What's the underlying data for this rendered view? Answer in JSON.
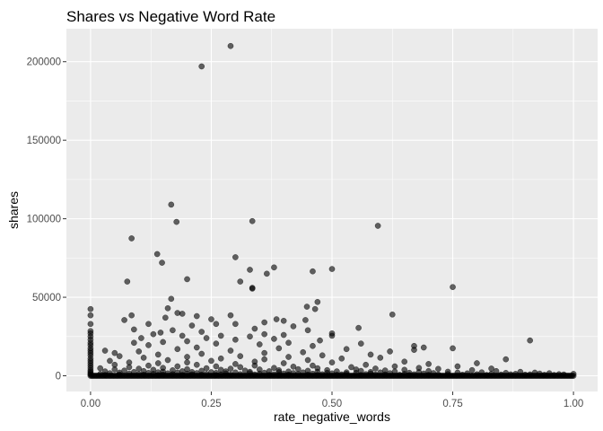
{
  "chart_data": {
    "type": "scatter",
    "title": "Shares vs Negative Word Rate",
    "xlabel": "rate_negative_words",
    "ylabel": "shares",
    "xlim": [
      -0.05,
      1.05
    ],
    "ylim": [
      -10000,
      221000
    ],
    "x_ticks": [
      0.0,
      0.25,
      0.5,
      0.75,
      1.0
    ],
    "x_tick_labels": [
      "0.00",
      "0.25",
      "0.50",
      "0.75",
      "1.00"
    ],
    "y_ticks": [
      0,
      50000,
      100000,
      150000,
      200000
    ],
    "y_tick_labels": [
      "0",
      "50000",
      "100000",
      "150000",
      "200000"
    ],
    "grid": true,
    "colors": {
      "panel": "#ebebeb",
      "grid": "#ffffff",
      "point": "#000000",
      "tick": "#333333"
    },
    "points": [
      [
        0.29,
        210000
      ],
      [
        0.23,
        197000
      ],
      [
        0.167,
        109000
      ],
      [
        0.178,
        98000
      ],
      [
        0.335,
        98500
      ],
      [
        0.595,
        95500
      ],
      [
        0.085,
        87500
      ],
      [
        0.138,
        77500
      ],
      [
        0.3,
        75500
      ],
      [
        0.148,
        72000
      ],
      [
        0.33,
        67500
      ],
      [
        0.365,
        65000
      ],
      [
        0.5,
        68000
      ],
      [
        0.46,
        66500
      ],
      [
        0.38,
        69000
      ],
      [
        0.2,
        61500
      ],
      [
        0.076,
        60000
      ],
      [
        0.335,
        56000
      ],
      [
        0.335,
        55500
      ],
      [
        0.31,
        60000
      ],
      [
        0.167,
        49000
      ],
      [
        0.16,
        43000
      ],
      [
        0.75,
        56500
      ],
      [
        0.0,
        42500
      ],
      [
        0.0,
        38500
      ],
      [
        0.0,
        33000
      ],
      [
        0.0,
        28500
      ],
      [
        0.0,
        27000
      ],
      [
        0.0,
        25000
      ],
      [
        0.0,
        23000
      ],
      [
        0.0,
        21000
      ],
      [
        0.0,
        19500
      ],
      [
        0.0,
        17500
      ],
      [
        0.0,
        16000
      ],
      [
        0.0,
        14500
      ],
      [
        0.0,
        13000
      ],
      [
        0.0,
        11000
      ],
      [
        0.0,
        9500
      ],
      [
        0.0,
        8000
      ],
      [
        0.0,
        6500
      ],
      [
        0.0,
        5000
      ],
      [
        0.0,
        3500
      ],
      [
        0.0,
        2500
      ],
      [
        0.0,
        1500
      ],
      [
        0.0,
        800
      ],
      [
        0.625,
        39000
      ],
      [
        0.47,
        47000
      ],
      [
        0.465,
        42500
      ],
      [
        0.448,
        44000
      ],
      [
        0.18,
        40000
      ],
      [
        0.19,
        39500
      ],
      [
        0.085,
        38500
      ],
      [
        0.29,
        38500
      ],
      [
        0.22,
        38000
      ],
      [
        0.155,
        37000
      ],
      [
        0.385,
        36000
      ],
      [
        0.25,
        36000
      ],
      [
        0.4,
        35000
      ],
      [
        0.07,
        35500
      ],
      [
        0.445,
        35500
      ],
      [
        0.36,
        34000
      ],
      [
        0.12,
        33000
      ],
      [
        0.26,
        33000
      ],
      [
        0.3,
        33000
      ],
      [
        0.21,
        32000
      ],
      [
        0.42,
        31500
      ],
      [
        0.555,
        30500
      ],
      [
        0.34,
        30000
      ],
      [
        0.09,
        29500
      ],
      [
        0.17,
        29000
      ],
      [
        0.45,
        29000
      ],
      [
        0.23,
        28000
      ],
      [
        0.145,
        27500
      ],
      [
        0.5,
        27000
      ],
      [
        0.36,
        26500
      ],
      [
        0.13,
        26500
      ],
      [
        0.4,
        26000
      ],
      [
        0.27,
        25500
      ],
      [
        0.19,
        25500
      ],
      [
        0.5,
        25500
      ],
      [
        0.33,
        25000
      ],
      [
        0.105,
        24000
      ],
      [
        0.24,
        24000
      ],
      [
        0.38,
        23500
      ],
      [
        0.3,
        23000
      ],
      [
        0.475,
        22500
      ],
      [
        0.91,
        22500
      ],
      [
        0.2,
        22000
      ],
      [
        0.15,
        21500
      ],
      [
        0.41,
        21000
      ],
      [
        0.09,
        21000
      ],
      [
        0.56,
        20500
      ],
      [
        0.26,
        20500
      ],
      [
        0.35,
        20000
      ],
      [
        0.12,
        19500
      ],
      [
        0.67,
        19000
      ],
      [
        0.46,
        19000
      ],
      [
        0.69,
        18000
      ],
      [
        0.22,
        18000
      ],
      [
        0.75,
        17500
      ],
      [
        0.39,
        17500
      ],
      [
        0.53,
        17000
      ],
      [
        0.18,
        17000
      ],
      [
        0.67,
        16500
      ],
      [
        0.03,
        16000
      ],
      [
        0.29,
        16000
      ],
      [
        0.62,
        15500
      ],
      [
        0.1,
        15500
      ],
      [
        0.44,
        15000
      ],
      [
        0.05,
        14500
      ],
      [
        0.36,
        14500
      ],
      [
        0.23,
        14000
      ],
      [
        0.58,
        13500
      ],
      [
        0.14,
        13500
      ],
      [
        0.48,
        13000
      ],
      [
        0.31,
        12500
      ],
      [
        0.06,
        12500
      ],
      [
        0.2,
        12000
      ],
      [
        0.41,
        12000
      ],
      [
        0.6,
        11500
      ],
      [
        0.11,
        11500
      ],
      [
        0.27,
        11000
      ],
      [
        0.52,
        11000
      ],
      [
        0.86,
        10500
      ],
      [
        0.36,
        10500
      ],
      [
        0.16,
        10000
      ],
      [
        0.45,
        10000
      ],
      [
        0.04,
        9500
      ],
      [
        0.25,
        9500
      ],
      [
        0.65,
        9000
      ],
      [
        0.34,
        9000
      ],
      [
        0.08,
        8500
      ],
      [
        0.2,
        8500
      ],
      [
        0.5,
        8500
      ],
      [
        0.8,
        8000
      ],
      [
        0.14,
        8000
      ],
      [
        0.4,
        8000
      ],
      [
        0.7,
        7500
      ],
      [
        0.3,
        7500
      ],
      [
        0.05,
        7000
      ],
      [
        0.22,
        7000
      ],
      [
        0.57,
        7000
      ],
      [
        0.46,
        6500
      ],
      [
        0.12,
        6500
      ],
      [
        0.34,
        6500
      ],
      [
        0.63,
        6000
      ],
      [
        0.18,
        6000
      ],
      [
        0.26,
        6000
      ],
      [
        0.76,
        6000
      ],
      [
        0.42,
        5800
      ],
      [
        0.08,
        5500
      ],
      [
        0.54,
        5500
      ],
      [
        0.31,
        5500
      ],
      [
        0.15,
        5000
      ],
      [
        0.68,
        5000
      ],
      [
        0.38,
        5000
      ],
      [
        0.02,
        4800
      ],
      [
        0.24,
        4800
      ],
      [
        0.47,
        4800
      ],
      [
        0.83,
        4600
      ],
      [
        0.59,
        4600
      ],
      [
        0.1,
        4500
      ],
      [
        0.29,
        4500
      ],
      [
        0.72,
        4400
      ],
      [
        0.2,
        4200
      ],
      [
        0.43,
        4200
      ],
      [
        0.35,
        4000
      ],
      [
        0.05,
        4000
      ],
      [
        0.55,
        4000
      ],
      [
        0.65,
        3800
      ],
      [
        0.13,
        3800
      ],
      [
        0.27,
        3800
      ],
      [
        0.49,
        3600
      ],
      [
        0.79,
        3600
      ],
      [
        0.39,
        3500
      ],
      [
        0.17,
        3500
      ],
      [
        0.61,
        3400
      ],
      [
        0.07,
        3300
      ],
      [
        0.32,
        3300
      ],
      [
        0.23,
        3200
      ],
      [
        0.45,
        3200
      ],
      [
        0.56,
        3100
      ],
      [
        0.7,
        3000
      ],
      [
        0.11,
        3000
      ],
      [
        0.84,
        3000
      ],
      [
        0.37,
        2900
      ],
      [
        0.19,
        2900
      ],
      [
        0.51,
        2800
      ],
      [
        0.03,
        2800
      ],
      [
        0.28,
        2800
      ],
      [
        0.63,
        2700
      ],
      [
        0.41,
        2700
      ],
      [
        0.74,
        2600
      ],
      [
        0.15,
        2600
      ],
      [
        0.89,
        2500
      ],
      [
        0.33,
        2500
      ],
      [
        0.47,
        2500
      ],
      [
        0.21,
        2400
      ],
      [
        0.58,
        2400
      ],
      [
        0.09,
        2400
      ],
      [
        0.68,
        2300
      ],
      [
        0.25,
        2300
      ],
      [
        0.39,
        2300
      ],
      [
        0.81,
        2200
      ],
      [
        0.53,
        2200
      ],
      [
        0.14,
        2200
      ],
      [
        0.3,
        2100
      ],
      [
        0.44,
        2100
      ],
      [
        0.6,
        2100
      ],
      [
        0.06,
        2000
      ],
      [
        0.76,
        2000
      ],
      [
        0.92,
        2000
      ],
      [
        0.18,
        2000
      ],
      [
        0.36,
        1900
      ],
      [
        0.49,
        1900
      ],
      [
        0.66,
        1900
      ],
      [
        0.26,
        1800
      ],
      [
        0.12,
        1800
      ],
      [
        0.55,
        1800
      ],
      [
        0.86,
        1800
      ],
      [
        0.42,
        1700
      ],
      [
        0.71,
        1700
      ],
      [
        0.22,
        1700
      ],
      [
        0.04,
        1600
      ],
      [
        0.33,
        1600
      ],
      [
        0.62,
        1600
      ],
      [
        0.95,
        1600
      ],
      [
        0.5,
        1500
      ],
      [
        0.16,
        1500
      ],
      [
        0.78,
        1500
      ],
      [
        0.28,
        1500
      ],
      [
        0.4,
        1400
      ],
      [
        0.58,
        1400
      ],
      [
        0.08,
        1400
      ],
      [
        0.69,
        1400
      ],
      [
        0.2,
        1300
      ],
      [
        0.46,
        1300
      ],
      [
        0.83,
        1300
      ],
      [
        0.35,
        1300
      ],
      [
        0.13,
        1200
      ],
      [
        0.65,
        1200
      ],
      [
        0.53,
        1200
      ],
      [
        0.88,
        1200
      ],
      [
        0.24,
        1100
      ],
      [
        0.43,
        1100
      ],
      [
        0.74,
        1100
      ],
      [
        0.02,
        1100
      ],
      [
        0.31,
        1000
      ],
      [
        0.57,
        1000
      ],
      [
        0.17,
        1000
      ],
      [
        0.97,
        1000
      ],
      [
        0.48,
        950
      ],
      [
        0.8,
        950
      ],
      [
        0.1,
        950
      ],
      [
        0.38,
        900
      ],
      [
        0.67,
        900
      ],
      [
        0.27,
        900
      ],
      [
        0.61,
        850
      ],
      [
        0.21,
        850
      ],
      [
        0.52,
        850
      ],
      [
        0.91,
        850
      ],
      [
        0.06,
        800
      ],
      [
        0.34,
        800
      ],
      [
        0.72,
        800
      ],
      [
        0.45,
        750
      ],
      [
        0.15,
        750
      ],
      [
        0.85,
        750
      ],
      [
        0.29,
        700
      ],
      [
        0.59,
        700
      ],
      [
        0.41,
        700
      ],
      [
        0.77,
        650
      ],
      [
        0.11,
        650
      ],
      [
        0.23,
        650
      ],
      [
        0.51,
        600
      ],
      [
        0.64,
        600
      ],
      [
        0.94,
        600
      ],
      [
        0.37,
        550
      ],
      [
        0.19,
        550
      ],
      [
        0.7,
        550
      ],
      [
        0.03,
        500
      ],
      [
        0.47,
        500
      ],
      [
        0.82,
        500
      ],
      [
        0.26,
        450
      ],
      [
        0.56,
        450
      ],
      [
        0.14,
        450
      ],
      [
        0.39,
        400
      ],
      [
        0.66,
        400
      ],
      [
        1.0,
        1200
      ],
      [
        0.98,
        800
      ],
      [
        0.87,
        900
      ],
      [
        0.93,
        1400
      ],
      [
        0.9,
        700
      ],
      [
        0.96,
        500
      ]
    ]
  }
}
